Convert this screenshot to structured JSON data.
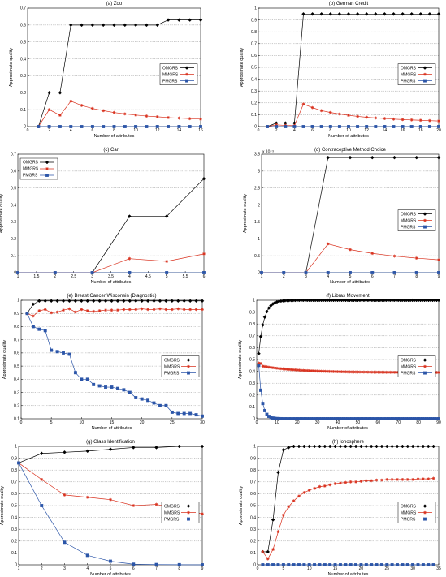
{
  "chart_data": [
    {
      "type": "line",
      "title": "(a) Zoo",
      "xlabel": "Number of attributes",
      "ylabel": "Approximate quality",
      "xlim": [
        0,
        16
      ],
      "ylim": [
        0,
        0.7
      ],
      "xticks": [
        0,
        2,
        4,
        6,
        8,
        10,
        12,
        14,
        16
      ],
      "xtick_labels": [
        "0",
        "2",
        "4",
        "6",
        "8",
        "10",
        "12",
        "14",
        "16"
      ],
      "yticks": [
        0,
        0.1,
        0.2,
        0.3,
        0.4,
        0.5,
        0.6,
        0.7
      ],
      "ytick_labels": [
        "0",
        "0.1",
        "0.2",
        "0.3",
        "0.4",
        "0.5",
        "0.6",
        "0.7"
      ],
      "grid": true,
      "legend": "right",
      "x": [
        1,
        2,
        3,
        4,
        5,
        6,
        7,
        8,
        9,
        10,
        11,
        12,
        13,
        14,
        15,
        16
      ],
      "series": [
        {
          "name": "OMGRS",
          "color": "#000000",
          "marker": "diamond",
          "values": [
            0,
            0.2,
            0.2,
            0.6,
            0.6,
            0.6,
            0.6,
            0.6,
            0.6,
            0.6,
            0.6,
            0.6,
            0.63,
            0.63,
            0.63,
            0.63
          ]
        },
        {
          "name": "MMGRS",
          "color": "#d9321f",
          "marker": "star",
          "values": [
            0,
            0.1,
            0.067,
            0.15,
            0.125,
            0.107,
            0.094,
            0.083,
            0.075,
            0.068,
            0.062,
            0.058,
            0.053,
            0.05,
            0.047,
            0.044
          ]
        },
        {
          "name": "PMGRS",
          "color": "#2b55a8",
          "marker": "square",
          "values": [
            0,
            0,
            0,
            0,
            0,
            0,
            0,
            0,
            0,
            0,
            0,
            0,
            0,
            0,
            0,
            0
          ]
        }
      ]
    },
    {
      "type": "line",
      "title": "(b) German Credit",
      "xlabel": "Number of attributes",
      "ylabel": "Approximate quality",
      "xlim": [
        0,
        20
      ],
      "ylim": [
        0,
        1
      ],
      "xticks": [
        0,
        2,
        4,
        6,
        8,
        10,
        12,
        14,
        16,
        18,
        20
      ],
      "xtick_labels": [
        "0",
        "2",
        "4",
        "6",
        "8",
        "10",
        "12",
        "14",
        "16",
        "18",
        "20"
      ],
      "yticks": [
        0,
        0.1,
        0.2,
        0.3,
        0.4,
        0.5,
        0.6,
        0.7,
        0.8,
        0.9,
        1
      ],
      "ytick_labels": [
        "0",
        "0.1",
        "0.2",
        "0.3",
        "0.4",
        "0.5",
        "0.6",
        "0.7",
        "0.8",
        "0.9",
        "1"
      ],
      "grid": true,
      "legend": "right",
      "x": [
        1,
        2,
        3,
        4,
        5,
        6,
        7,
        8,
        9,
        10,
        11,
        12,
        13,
        14,
        15,
        16,
        17,
        18,
        19,
        20
      ],
      "series": [
        {
          "name": "OMGRS",
          "color": "#000000",
          "marker": "diamond",
          "values": [
            0,
            0.03,
            0.03,
            0.03,
            0.95,
            0.95,
            0.95,
            0.95,
            0.95,
            0.95,
            0.95,
            0.95,
            0.95,
            0.95,
            0.95,
            0.95,
            0.95,
            0.95,
            0.95,
            0.95
          ]
        },
        {
          "name": "MMGRS",
          "color": "#d9321f",
          "marker": "star",
          "values": [
            0,
            0.015,
            0.01,
            0.008,
            0.19,
            0.16,
            0.135,
            0.119,
            0.106,
            0.095,
            0.086,
            0.079,
            0.073,
            0.068,
            0.063,
            0.059,
            0.056,
            0.053,
            0.05,
            0.047
          ]
        },
        {
          "name": "PMGRS",
          "color": "#2b55a8",
          "marker": "square",
          "values": [
            0,
            0,
            0,
            0,
            0,
            0,
            0,
            0,
            0,
            0,
            0,
            0,
            0,
            0,
            0,
            0,
            0,
            0,
            0,
            0
          ]
        }
      ]
    },
    {
      "type": "line",
      "title": "(c) Car",
      "xlabel": "Number of attributes",
      "ylabel": "Approximate quality",
      "xlim": [
        1,
        6
      ],
      "ylim": [
        0,
        0.7
      ],
      "xticks": [
        1,
        1.5,
        2,
        2.5,
        3,
        3.5,
        4,
        4.5,
        5,
        5.5,
        6
      ],
      "xtick_labels": [
        "1",
        "1.5",
        "2",
        "2.5",
        "3",
        "3.5",
        "4",
        "4.5",
        "5",
        "5.5",
        "6"
      ],
      "yticks": [
        0,
        0.1,
        0.2,
        0.3,
        0.4,
        0.5,
        0.6,
        0.7
      ],
      "ytick_labels": [
        "0",
        "0.1",
        "0.2",
        "0.3",
        "0.4",
        "0.5",
        "0.6",
        "0.7"
      ],
      "grid": true,
      "legend": "left",
      "x": [
        1,
        2,
        3,
        4,
        5,
        6
      ],
      "series": [
        {
          "name": "OMGRS",
          "color": "#000000",
          "marker": "diamond",
          "values": [
            0,
            0,
            0,
            0.333,
            0.333,
            0.555
          ]
        },
        {
          "name": "MMGRS",
          "color": "#d9321f",
          "marker": "star",
          "values": [
            0,
            0,
            0,
            0.083,
            0.067,
            0.111
          ]
        },
        {
          "name": "PMGRS",
          "color": "#2b55a8",
          "marker": "square",
          "values": [
            0,
            0,
            0,
            0,
            0,
            0
          ]
        }
      ]
    },
    {
      "type": "line",
      "title": "(d) Contraceptive Method Choice",
      "xlabel": "Number of attributes",
      "ylabel": "Approximate quality",
      "xlim": [
        1,
        9
      ],
      "ylim": [
        0,
        3.5
      ],
      "y_exponent": "x 10⁻³",
      "xticks": [
        1,
        2,
        3,
        4,
        5,
        6,
        7,
        8,
        9
      ],
      "xtick_labels": [
        "1",
        "2",
        "3",
        "4",
        "5",
        "6",
        "7",
        "8",
        "9"
      ],
      "yticks": [
        0,
        0.5,
        1,
        1.5,
        2,
        2.5,
        3,
        3.5
      ],
      "ytick_labels": [
        "0",
        "0.5",
        "1",
        "1.5",
        "2",
        "2.5",
        "3",
        "3.5"
      ],
      "grid": true,
      "legend": "right",
      "x": [
        1,
        2,
        3,
        4,
        5,
        6,
        7,
        8,
        9
      ],
      "series": [
        {
          "name": "OMGRS",
          "color": "#000000",
          "marker": "diamond",
          "values": [
            0,
            0,
            0,
            3.4,
            3.4,
            3.4,
            3.4,
            3.4,
            3.4
          ]
        },
        {
          "name": "MMGRS",
          "color": "#d9321f",
          "marker": "star",
          "values": [
            0,
            0,
            0,
            0.85,
            0.68,
            0.57,
            0.49,
            0.43,
            0.38
          ]
        },
        {
          "name": "PMGRS",
          "color": "#2b55a8",
          "marker": "square",
          "values": [
            0,
            0,
            0,
            0,
            0,
            0,
            0,
            0,
            0
          ]
        }
      ]
    },
    {
      "type": "line",
      "title": "(e) Breast Cancer Wisconsin (Diagnostic)",
      "xlabel": "Number of attributes",
      "ylabel": "Approximate quality",
      "xlim": [
        0,
        30
      ],
      "ylim": [
        0.1,
        1
      ],
      "xticks": [
        0,
        5,
        10,
        15,
        20,
        25,
        30
      ],
      "xtick_labels": [
        "0",
        "5",
        "10",
        "15",
        "20",
        "25",
        "30"
      ],
      "yticks": [
        0.1,
        0.2,
        0.3,
        0.4,
        0.5,
        0.6,
        0.7,
        0.8,
        0.9,
        1
      ],
      "ytick_labels": [
        "0.1",
        "0.2",
        "0.3",
        "0.4",
        "0.5",
        "0.6",
        "0.7",
        "0.8",
        "0.9",
        "1"
      ],
      "grid": true,
      "legend": "right",
      "x": [
        1,
        2,
        3,
        4,
        5,
        6,
        7,
        8,
        9,
        10,
        11,
        12,
        13,
        14,
        15,
        16,
        17,
        18,
        19,
        20,
        21,
        22,
        23,
        24,
        25,
        26,
        27,
        28,
        29,
        30
      ],
      "series": [
        {
          "name": "OMGRS",
          "color": "#000000",
          "marker": "diamond",
          "values": [
            0.9,
            0.97,
            0.995,
            0.995,
            0.995,
            0.995,
            0.995,
            0.995,
            0.995,
            0.995,
            0.995,
            0.995,
            0.995,
            0.995,
            0.995,
            0.995,
            0.995,
            0.995,
            0.995,
            0.995,
            0.995,
            0.995,
            0.995,
            0.995,
            0.995,
            0.995,
            0.995,
            0.995,
            0.995,
            0.995
          ]
        },
        {
          "name": "MMGRS",
          "color": "#d9321f",
          "marker": "star",
          "values": [
            0.9,
            0.88,
            0.92,
            0.93,
            0.905,
            0.91,
            0.925,
            0.935,
            0.91,
            0.93,
            0.92,
            0.915,
            0.92,
            0.925,
            0.925,
            0.925,
            0.93,
            0.93,
            0.93,
            0.935,
            0.93,
            0.93,
            0.935,
            0.93,
            0.93,
            0.935,
            0.93,
            0.93,
            0.93,
            0.93
          ]
        },
        {
          "name": "PMGRS",
          "color": "#2b55a8",
          "marker": "square",
          "values": [
            0.9,
            0.8,
            0.78,
            0.77,
            0.62,
            0.61,
            0.6,
            0.59,
            0.45,
            0.4,
            0.4,
            0.36,
            0.35,
            0.34,
            0.34,
            0.33,
            0.32,
            0.3,
            0.26,
            0.25,
            0.24,
            0.22,
            0.2,
            0.2,
            0.15,
            0.14,
            0.14,
            0.14,
            0.13,
            0.12
          ]
        }
      ]
    },
    {
      "type": "line",
      "title": "(f) Libras Movement",
      "xlabel": "Number of attributes",
      "ylabel": "Approximate quality",
      "xlim": [
        0,
        90
      ],
      "ylim": [
        0,
        1
      ],
      "xticks": [
        0,
        10,
        20,
        30,
        40,
        50,
        60,
        70,
        80,
        90
      ],
      "xtick_labels": [
        "0",
        "10",
        "20",
        "30",
        "40",
        "50",
        "60",
        "70",
        "80",
        "90"
      ],
      "yticks": [
        0,
        0.1,
        0.2,
        0.3,
        0.4,
        0.5,
        0.6,
        0.7,
        0.8,
        0.9,
        1
      ],
      "ytick_labels": [
        "0",
        "0.1",
        "0.2",
        "0.3",
        "0.4",
        "0.5",
        "0.6",
        "0.7",
        "0.8",
        "0.9",
        "1"
      ],
      "grid": true,
      "legend": "right",
      "x_range": [
        1,
        90
      ],
      "series": [
        {
          "name": "OMGRS",
          "color": "#000000",
          "marker": "diamond",
          "formula": "omgrs_f"
        },
        {
          "name": "MMGRS",
          "color": "#d9321f",
          "marker": "star",
          "formula": "mmgrs_f"
        },
        {
          "name": "PMGRS",
          "color": "#2b55a8",
          "marker": "square",
          "formula": "pmgrs_f"
        }
      ]
    },
    {
      "type": "line",
      "title": "(g) Glass Identification",
      "xlabel": "Number of attributes",
      "ylabel": "Approximate quality",
      "xlim": [
        1,
        9
      ],
      "ylim": [
        0,
        1
      ],
      "xticks": [
        1,
        2,
        3,
        4,
        5,
        6,
        7,
        8,
        9
      ],
      "xtick_labels": [
        "1",
        "2",
        "3",
        "4",
        "5",
        "6",
        "7",
        "8",
        "9"
      ],
      "yticks": [
        0,
        0.1,
        0.2,
        0.3,
        0.4,
        0.5,
        0.6,
        0.7,
        0.8,
        0.9,
        1
      ],
      "ytick_labels": [
        "0",
        "0.1",
        "0.2",
        "0.3",
        "0.4",
        "0.5",
        "0.6",
        "0.7",
        "0.8",
        "0.9",
        "1"
      ],
      "grid": true,
      "legend": "right",
      "x": [
        1,
        2,
        3,
        4,
        5,
        6,
        7,
        8,
        9
      ],
      "series": [
        {
          "name": "OMGRS",
          "color": "#000000",
          "marker": "diamond",
          "values": [
            0.86,
            0.94,
            0.95,
            0.96,
            0.975,
            0.99,
            0.99,
            1,
            1
          ]
        },
        {
          "name": "MMGRS",
          "color": "#d9321f",
          "marker": "star",
          "values": [
            0.86,
            0.72,
            0.59,
            0.57,
            0.55,
            0.5,
            0.51,
            0.47,
            0.43
          ]
        },
        {
          "name": "PMGRS",
          "color": "#2b55a8",
          "marker": "square",
          "values": [
            0.86,
            0.5,
            0.19,
            0.08,
            0.03,
            0.005,
            0.002,
            0.001,
            0
          ]
        }
      ]
    },
    {
      "type": "line",
      "title": "(h) Ionosphere",
      "xlabel": "Number of attributes",
      "ylabel": "Approximate quality",
      "xlim": [
        0,
        35
      ],
      "ylim": [
        0,
        1
      ],
      "xticks": [
        0,
        5,
        10,
        15,
        20,
        25,
        30,
        35
      ],
      "xtick_labels": [
        "0",
        "5",
        "10",
        "15",
        "20",
        "25",
        "30",
        "35"
      ],
      "yticks": [
        0,
        0.1,
        0.2,
        0.3,
        0.4,
        0.5,
        0.6,
        0.7,
        0.8,
        0.9,
        1
      ],
      "ytick_labels": [
        "0",
        "0.1",
        "0.2",
        "0.3",
        "0.4",
        "0.5",
        "0.6",
        "0.7",
        "0.8",
        "0.9",
        "1"
      ],
      "grid": true,
      "legend": "right",
      "x": [
        1,
        2,
        3,
        4,
        5,
        6,
        7,
        8,
        9,
        10,
        11,
        12,
        13,
        14,
        15,
        16,
        17,
        18,
        19,
        20,
        21,
        22,
        23,
        24,
        25,
        26,
        27,
        28,
        29,
        30,
        31,
        32,
        33,
        34
      ],
      "series": [
        {
          "name": "OMGRS",
          "color": "#000000",
          "marker": "diamond",
          "values": [
            0.11,
            0.11,
            0.38,
            0.78,
            0.97,
            0.99,
            1,
            1,
            1,
            1,
            1,
            1,
            1,
            1,
            1,
            1,
            1,
            1,
            1,
            1,
            1,
            1,
            1,
            1,
            1,
            1,
            1,
            1,
            1,
            1,
            1,
            1,
            1,
            1
          ]
        },
        {
          "name": "MMGRS",
          "color": "#d9321f",
          "marker": "star",
          "values": [
            0.11,
            0.05,
            0.13,
            0.28,
            0.42,
            0.49,
            0.54,
            0.58,
            0.61,
            0.63,
            0.645,
            0.66,
            0.665,
            0.675,
            0.685,
            0.69,
            0.695,
            0.7,
            0.7,
            0.705,
            0.71,
            0.71,
            0.715,
            0.715,
            0.72,
            0.72,
            0.72,
            0.72,
            0.72,
            0.72,
            0.725,
            0.725,
            0.725,
            0.73
          ]
        },
        {
          "name": "PMGRS",
          "color": "#2b55a8",
          "marker": "square",
          "values": [
            0,
            0,
            0,
            0,
            0,
            0,
            0,
            0,
            0,
            0,
            0,
            0,
            0,
            0,
            0,
            0,
            0,
            0,
            0,
            0,
            0,
            0,
            0,
            0,
            0,
            0,
            0,
            0,
            0,
            0,
            0,
            0,
            0,
            0
          ]
        }
      ]
    }
  ]
}
